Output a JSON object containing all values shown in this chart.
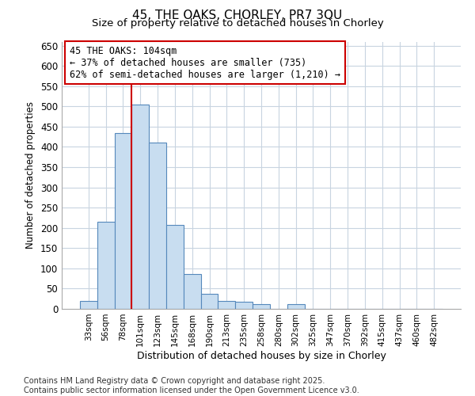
{
  "title_line1": "45, THE OAKS, CHORLEY, PR7 3QU",
  "title_line2": "Size of property relative to detached houses in Chorley",
  "xlabel": "Distribution of detached houses by size in Chorley",
  "ylabel": "Number of detached properties",
  "bar_color": "#c8ddf0",
  "bar_edge_color": "#5588bb",
  "categories": [
    "33sqm",
    "56sqm",
    "78sqm",
    "101sqm",
    "123sqm",
    "145sqm",
    "168sqm",
    "190sqm",
    "213sqm",
    "235sqm",
    "258sqm",
    "280sqm",
    "302sqm",
    "325sqm",
    "347sqm",
    "370sqm",
    "392sqm",
    "415sqm",
    "437sqm",
    "460sqm",
    "482sqm"
  ],
  "values": [
    20,
    215,
    435,
    505,
    410,
    207,
    87,
    38,
    20,
    18,
    12,
    0,
    12,
    0,
    0,
    0,
    0,
    0,
    0,
    0,
    0
  ],
  "vline_index": 3,
  "vline_color": "#cc0000",
  "annotation_text_line1": "45 THE OAKS: 104sqm",
  "annotation_text_line2": "← 37% of detached houses are smaller (735)",
  "annotation_text_line3": "62% of semi-detached houses are larger (1,210) →",
  "annotation_fontsize": 8.5,
  "box_edge_color": "#cc0000",
  "ylim": [
    0,
    660
  ],
  "yticks": [
    0,
    50,
    100,
    150,
    200,
    250,
    300,
    350,
    400,
    450,
    500,
    550,
    600,
    650
  ],
  "title_fontsize": 11,
  "xlabel_fontsize": 9,
  "ylabel_fontsize": 8.5,
  "footnote_line1": "Contains HM Land Registry data © Crown copyright and database right 2025.",
  "footnote_line2": "Contains public sector information licensed under the Open Government Licence v3.0.",
  "footnote_fontsize": 7,
  "grid_color": "#c8d4e0",
  "background_color": "#ffffff"
}
